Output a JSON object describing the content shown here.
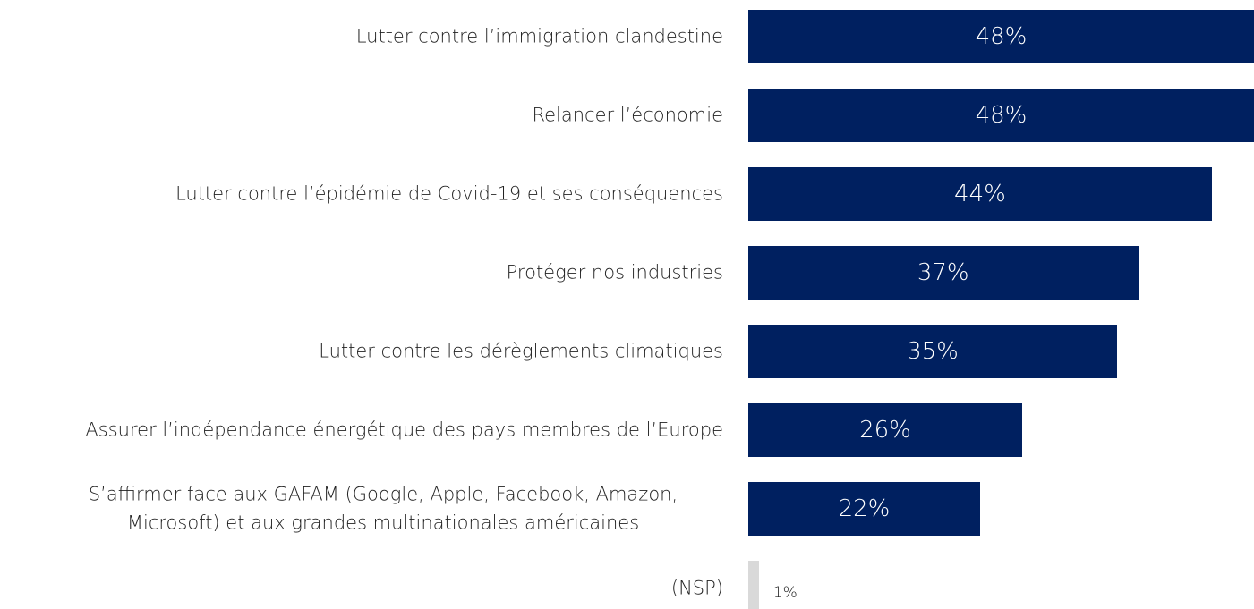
{
  "chart_data": {
    "type": "bar",
    "orientation": "horizontal",
    "categories": [
      "Lutter contre l’immigration clandestine",
      "Relancer l’économie",
      "Lutter contre l’épidémie de Covid-19 et ses conséquences",
      "Protéger nos industries",
      "Lutter contre les dérèglements climatiques",
      "Assurer l’indépendance énergétique des pays membres de l’Europe",
      "S’affirmer face aux GAFAM (Google, Apple, Facebook, Amazon, Microsoft) et aux grandes multinationales américaines",
      "(NSP)"
    ],
    "values": [
      48,
      48,
      44,
      37,
      35,
      26,
      22,
      1
    ],
    "value_labels": [
      "48%",
      "48%",
      "44%",
      "37%",
      "35%",
      "26%",
      "22%",
      "1%"
    ],
    "colors": [
      "#002060",
      "#002060",
      "#002060",
      "#002060",
      "#002060",
      "#002060",
      "#002060",
      "#d9d9d9"
    ],
    "xlim": [
      0,
      48
    ]
  }
}
